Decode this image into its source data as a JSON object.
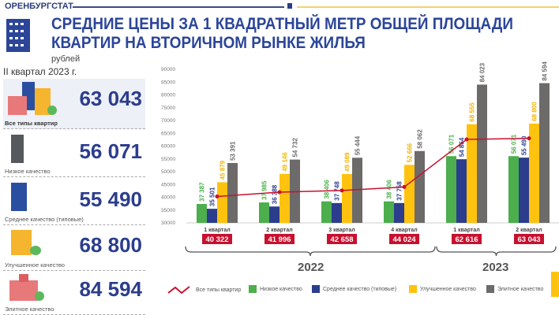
{
  "header": {
    "brand": "ОРЕНБУРГСТАТ",
    "title_line1": "СРЕДНИЕ ЦЕНЫ ЗА 1 КВАДРАТНЫЙ МЕТР ОБЩЕЙ ПЛОЩАДИ",
    "title_line2": "КВАРТИР НА ВТОРИЧНОМ РЫНКЕ ЖИЛЬЯ",
    "units": "рублей"
  },
  "summary": {
    "period": "II квартал 2023 г.",
    "items": [
      {
        "label": "Все типы квартир",
        "value": "63 043"
      },
      {
        "label": "Низкое качество",
        "value": "56 071"
      },
      {
        "label": "Среднее качество (типовые)",
        "value": "55 490"
      },
      {
        "label": "Улучшенное качество",
        "value": "68 800"
      },
      {
        "label": "Элитное качество",
        "value": "84 594"
      }
    ]
  },
  "colors": {
    "low": "#4cae4c",
    "mid": "#2b3d8c",
    "improved": "#ffc20e",
    "elite": "#6d6a6a",
    "all": "#c8102e",
    "accent": "#2b4599"
  },
  "chart_data": {
    "type": "bar",
    "title": "Средние цены за 1 квадратный метр общей площади квартир на вторичном рынке жилья",
    "ylabel": "рублей",
    "ylim": [
      30000,
      90000
    ],
    "yticks": [
      "30000",
      "35000",
      "40000",
      "45000",
      "50000",
      "55000",
      "60000",
      "65000",
      "70000",
      "75000",
      "80000",
      "85000",
      "90000"
    ],
    "categories": [
      "1 квартал",
      "2 квартал",
      "3 квартал",
      "4 квартал",
      "1 квартал",
      "2 квартал"
    ],
    "years": [
      {
        "label": "2022",
        "span": [
          0,
          3
        ]
      },
      {
        "label": "2023",
        "span": [
          4,
          5
        ]
      }
    ],
    "series": [
      {
        "name": "Низкое качество",
        "type": "bar",
        "color": "#4cae4c",
        "values": [
          37387,
          37985,
          38406,
          38406,
          56071,
          56071
        ],
        "labels": [
          "37 387",
          "37 985",
          "38 406",
          "38 406",
          "56 071",
          "56 071"
        ]
      },
      {
        "name": "Среднее качество (типовые)",
        "type": "bar",
        "color": "#2b3d8c",
        "values": [
          35501,
          36388,
          37748,
          37758,
          54864,
          55490
        ],
        "labels": [
          "35 501",
          "36 388",
          "37 748",
          "37 758",
          "54 864",
          "55 490"
        ]
      },
      {
        "name": "Улучшенное качество",
        "type": "bar",
        "color": "#ffc20e",
        "values": [
          45879,
          49146,
          49089,
          52666,
          68555,
          68800
        ],
        "labels": [
          "45 879",
          "49 146",
          "49 089",
          "52 666",
          "68 555",
          "68 800"
        ]
      },
      {
        "name": "Элитное качество",
        "type": "bar",
        "color": "#6d6a6a",
        "values": [
          53391,
          54732,
          55444,
          58062,
          84023,
          84594
        ],
        "labels": [
          "53 391",
          "54 732",
          "55 444",
          "58 062",
          "84 023",
          "84 594"
        ]
      },
      {
        "name": "Все типы квартир",
        "type": "line",
        "color": "#c8102e",
        "values": [
          40322,
          41996,
          42658,
          44024,
          62616,
          63043
        ],
        "labels": [
          "40 322",
          "41 996",
          "42 658",
          "44 024",
          "62 616",
          "63 043"
        ]
      }
    ],
    "legend": "bottom"
  }
}
